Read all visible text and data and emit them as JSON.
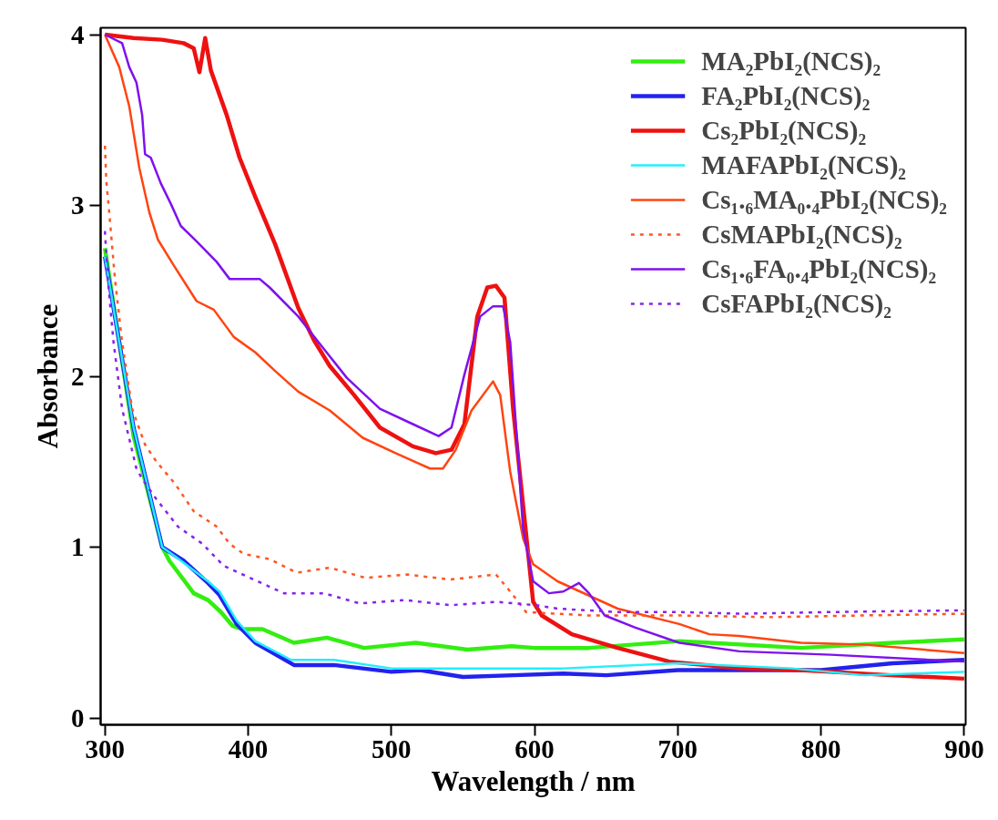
{
  "chart_data": {
    "type": "line",
    "xlabel": "Wavelength / nm",
    "ylabel": "Absorbance",
    "xlim": [
      297,
      901
    ],
    "ylim": [
      -0.04,
      4.04
    ],
    "xticks": [
      300,
      400,
      500,
      600,
      700,
      800,
      900
    ],
    "yticks": [
      0,
      1,
      2,
      3,
      4
    ],
    "grid": false,
    "legend": "top right",
    "marker": "none",
    "series": [
      {
        "name": "MA₂PbI₂(NCS)₂",
        "color": "#33ee11",
        "line_style": "solid",
        "x": [
          300,
          320,
          340,
          345,
          362,
          372,
          381,
          389,
          396,
          410,
          432,
          455,
          481,
          517,
          553,
          584,
          600,
          638,
          701,
          786,
          850,
          900
        ],
        "values": [
          2.75,
          1.65,
          1.0,
          0.92,
          0.73,
          0.69,
          0.62,
          0.54,
          0.52,
          0.52,
          0.44,
          0.47,
          0.41,
          0.44,
          0.4,
          0.42,
          0.41,
          0.41,
          0.45,
          0.41,
          0.44,
          0.46
        ]
      },
      {
        "name": "FA₂PbI₂(NCS)₂",
        "color": "#2222ee",
        "line_style": "solid",
        "x": [
          300,
          320,
          340,
          355,
          372,
          380,
          392,
          405,
          432,
          460,
          500,
          520,
          550,
          585,
          620,
          650,
          700,
          800,
          850,
          900
        ],
        "values": [
          2.7,
          1.7,
          1.0,
          0.92,
          0.79,
          0.72,
          0.55,
          0.44,
          0.31,
          0.31,
          0.27,
          0.28,
          0.24,
          0.25,
          0.26,
          0.25,
          0.28,
          0.28,
          0.32,
          0.34
        ]
      },
      {
        "name": "Cs₂PbI₂(NCS)₂",
        "color": "#ee1111",
        "line_style": "solid",
        "x": [
          300,
          320,
          340,
          355,
          362,
          366,
          370,
          374,
          385,
          394,
          405,
          419,
          435,
          446,
          457,
          474,
          492,
          515,
          531,
          542,
          551,
          560,
          567,
          573,
          579,
          585,
          599,
          605,
          626,
          658,
          694,
          743,
          786,
          849,
          900
        ],
        "values": [
          4.0,
          3.98,
          3.97,
          3.95,
          3.92,
          3.78,
          3.98,
          3.79,
          3.53,
          3.28,
          3.05,
          2.77,
          2.4,
          2.21,
          2.06,
          1.89,
          1.7,
          1.59,
          1.55,
          1.57,
          1.72,
          2.35,
          2.52,
          2.53,
          2.46,
          1.81,
          0.68,
          0.6,
          0.49,
          0.41,
          0.33,
          0.29,
          0.28,
          0.25,
          0.23
        ]
      },
      {
        "name": "MAFAPbI₂(NCS)₂",
        "color": "#22eeff",
        "line_style": "solid",
        "x": [
          300,
          320,
          340,
          350,
          372,
          380,
          392,
          405,
          430,
          460,
          500,
          550,
          585,
          620,
          700,
          780,
          830,
          900
        ],
        "values": [
          2.7,
          1.7,
          1.0,
          0.94,
          0.8,
          0.74,
          0.57,
          0.45,
          0.34,
          0.34,
          0.29,
          0.29,
          0.29,
          0.29,
          0.32,
          0.29,
          0.25,
          0.27
        ]
      },
      {
        "name": "Cs₁.₆MA₀.₄PbI₂(NCS)₂",
        "color": "#ff4411",
        "line_style": "solid",
        "x": [
          300,
          310,
          317,
          324,
          331,
          337,
          348,
          364,
          376,
          390,
          405,
          419,
          435,
          457,
          480,
          503,
          527,
          536,
          545,
          556,
          571,
          576,
          583,
          592,
          599,
          616,
          658,
          701,
          722,
          743,
          786,
          829,
          900
        ],
        "values": [
          4.0,
          3.81,
          3.58,
          3.22,
          2.96,
          2.8,
          2.65,
          2.44,
          2.39,
          2.23,
          2.14,
          2.03,
          1.91,
          1.8,
          1.64,
          1.55,
          1.46,
          1.46,
          1.57,
          1.8,
          1.97,
          1.89,
          1.44,
          1.05,
          0.9,
          0.8,
          0.64,
          0.55,
          0.49,
          0.48,
          0.44,
          0.43,
          0.38
        ]
      },
      {
        "name": "CsMAPbI₂(NCS)₂",
        "color": "#ff5522",
        "line_style": "dotted",
        "x": [
          300,
          301,
          303,
          307,
          312,
          319,
          328,
          336,
          349,
          362,
          378,
          387,
          397,
          415,
          434,
          457,
          482,
          511,
          541,
          573,
          584,
          594,
          638,
          701,
          764,
          829,
          900
        ],
        "values": [
          3.35,
          3.14,
          2.96,
          2.57,
          2.2,
          1.81,
          1.6,
          1.5,
          1.37,
          1.21,
          1.12,
          1.02,
          0.96,
          0.93,
          0.85,
          0.88,
          0.82,
          0.84,
          0.81,
          0.84,
          0.73,
          0.62,
          0.6,
          0.6,
          0.59,
          0.6,
          0.61
        ]
      },
      {
        "name": "Cs₁.₆FA₀.₄PbI₂(NCS)₂",
        "color": "#7f11ee",
        "line_style": "solid",
        "x": [
          300,
          312,
          317,
          322,
          326,
          328,
          332,
          339,
          346,
          353,
          364,
          378,
          387,
          408,
          415,
          435,
          451,
          469,
          492,
          515,
          533,
          542,
          551,
          562,
          571,
          578,
          583,
          592,
          599,
          610,
          620,
          631,
          638,
          649,
          670,
          701,
          743,
          807,
          900
        ],
        "values": [
          4.0,
          3.95,
          3.81,
          3.72,
          3.53,
          3.3,
          3.28,
          3.13,
          3.01,
          2.88,
          2.79,
          2.67,
          2.57,
          2.57,
          2.52,
          2.35,
          2.18,
          1.99,
          1.81,
          1.72,
          1.65,
          1.7,
          2.01,
          2.35,
          2.41,
          2.41,
          2.2,
          1.1,
          0.8,
          0.73,
          0.74,
          0.79,
          0.73,
          0.6,
          0.53,
          0.44,
          0.39,
          0.37,
          0.33
        ]
      },
      {
        "name": "CsFAPbI₂(NCS)₂",
        "color": "#8822ee",
        "line_style": "dotted",
        "x": [
          300,
          302,
          306,
          312,
          322,
          326,
          336,
          351,
          368,
          383,
          404,
          425,
          453,
          478,
          510,
          541,
          573,
          601,
          616,
          658,
          701,
          743,
          807,
          900
        ],
        "values": [
          2.85,
          2.57,
          2.2,
          1.81,
          1.46,
          1.4,
          1.28,
          1.12,
          1.02,
          0.89,
          0.81,
          0.73,
          0.73,
          0.67,
          0.69,
          0.66,
          0.68,
          0.66,
          0.64,
          0.62,
          0.62,
          0.61,
          0.62,
          0.63
        ]
      }
    ]
  }
}
